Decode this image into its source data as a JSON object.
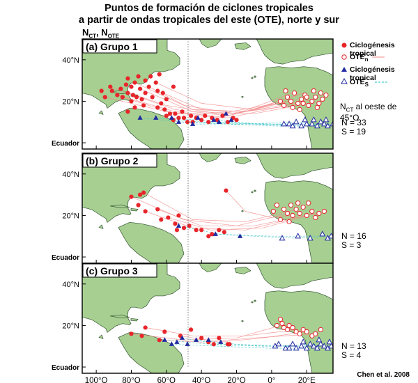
{
  "title_line1": "Puntos de formación de ciclones tropicales",
  "title_line2": "a partir de ondas tropicales del este (OTE), norte y sur",
  "n_label_main": "N",
  "n_label_sub1": "CT",
  "n_label_sep": ", N",
  "n_label_sub2": "OTE",
  "credit": "Chen et al. 2008",
  "lat_labels": [
    "40°N",
    "20°N",
    "Ecuador"
  ],
  "lon_labels": [
    "100°O",
    "80°O",
    "60°O",
    "40°O",
    "20°O",
    "0°",
    "20°E"
  ],
  "colors": {
    "ocean": "#ffffff",
    "land": "#a6cf91",
    "north": "#e8252a",
    "south": "#1f2aa0",
    "north_track": "#f28b8b",
    "south_track": "#45c6c9"
  },
  "legend": {
    "north_genesis": "Ciclogénesis tropical",
    "north_wave_main": "OTE",
    "north_wave_sub": "n",
    "south_genesis": "Ciclogénesis tropical",
    "south_wave_main": "OTE",
    "south_wave_sub": "S",
    "note_main": "N",
    "note_sub": "CT",
    "note_rest": " al oeste de 45°O"
  },
  "panels": [
    {
      "id": "g1",
      "label": "(a) Grupo 1",
      "n": "N = 33",
      "s": "S = 19",
      "north_genesis": [
        [
          -97,
          25
        ],
        [
          -95,
          22
        ],
        [
          -92,
          27
        ],
        [
          -91,
          25
        ],
        [
          -88,
          23
        ],
        [
          -86,
          26
        ],
        [
          -85,
          22
        ],
        [
          -83,
          28
        ],
        [
          -82,
          24
        ],
        [
          -82,
          31
        ],
        [
          -80,
          20
        ],
        [
          -80,
          27
        ],
        [
          -79,
          23
        ],
        [
          -78,
          29
        ],
        [
          -77,
          22
        ],
        [
          -76,
          32
        ],
        [
          -75,
          26
        ],
        [
          -74,
          21
        ],
        [
          -72,
          24
        ],
        [
          -72,
          30
        ],
        [
          -70,
          27
        ],
        [
          -69,
          32
        ],
        [
          -68,
          22
        ],
        [
          -66,
          29
        ],
        [
          -65,
          25
        ],
        [
          -64,
          33
        ],
        [
          -63,
          19
        ],
        [
          -62,
          24
        ],
        [
          -60,
          21
        ],
        [
          -56,
          27
        ],
        [
          -82,
          15
        ],
        [
          -78,
          17
        ],
        [
          -73,
          18
        ],
        [
          -65,
          17
        ],
        [
          -61,
          16
        ],
        [
          -60,
          13
        ],
        [
          -58,
          14
        ],
        [
          -56,
          11
        ],
        [
          -55,
          14
        ],
        [
          -53,
          12
        ],
        [
          -51,
          15
        ],
        [
          -50,
          12
        ],
        [
          -48,
          10
        ],
        [
          -46,
          13
        ],
        [
          -45,
          10
        ],
        [
          -43,
          12
        ],
        [
          -40,
          11
        ],
        [
          -38,
          13
        ],
        [
          -36,
          10
        ],
        [
          -34,
          12
        ],
        [
          -31,
          11
        ],
        [
          -28,
          13
        ],
        [
          -25,
          10
        ],
        [
          -22,
          12
        ],
        [
          -20,
          11
        ]
      ],
      "south_genesis": [
        [
          -75,
          12
        ],
        [
          -66,
          12
        ],
        [
          -57,
          12
        ],
        [
          -53,
          10
        ],
        [
          -45,
          9
        ],
        [
          -42,
          12
        ],
        [
          -33,
          11
        ],
        [
          -30,
          10
        ],
        [
          -26,
          14
        ],
        [
          -23,
          11
        ]
      ],
      "north_waves": [
        [
          5,
          20
        ],
        [
          7,
          18
        ],
        [
          9,
          22
        ],
        [
          11,
          20
        ],
        [
          13,
          24
        ],
        [
          15,
          19
        ],
        [
          17,
          21
        ],
        [
          19,
          23
        ],
        [
          21,
          18
        ],
        [
          23,
          20
        ],
        [
          25,
          22
        ],
        [
          27,
          19
        ],
        [
          29,
          21
        ],
        [
          31,
          23
        ],
        [
          8,
          25
        ],
        [
          12,
          17
        ],
        [
          16,
          16
        ],
        [
          20,
          22
        ],
        [
          24,
          25
        ],
        [
          26,
          17
        ],
        [
          28,
          24
        ],
        [
          18,
          19
        ]
      ],
      "south_waves": [
        [
          7,
          9
        ],
        [
          10,
          9
        ],
        [
          14,
          10
        ],
        [
          17,
          8
        ],
        [
          20,
          9
        ],
        [
          23,
          9
        ],
        [
          26,
          8
        ],
        [
          28,
          10
        ],
        [
          30,
          9
        ],
        [
          32,
          8
        ],
        [
          35,
          9
        ],
        [
          12,
          8
        ],
        [
          19,
          11
        ],
        [
          24,
          11
        ],
        [
          31,
          11
        ]
      ],
      "north_tracks": [
        [
          [
            -92,
            27
          ],
          [
            -60,
            18
          ],
          [
            -30,
            14
          ],
          [
            10,
            20
          ]
        ],
        [
          [
            -82,
            24
          ],
          [
            -55,
            16
          ],
          [
            -25,
            13
          ],
          [
            20,
            22
          ]
        ],
        [
          [
            -70,
            27
          ],
          [
            -45,
            16
          ],
          [
            -15,
            15
          ],
          [
            25,
            21
          ]
        ],
        [
          [
            -62,
            24
          ],
          [
            -40,
            16
          ],
          [
            -15,
            15
          ],
          [
            15,
            23
          ]
        ],
        [
          [
            -78,
            29
          ],
          [
            -50,
            18
          ],
          [
            -20,
            14
          ],
          [
            12,
            24
          ]
        ],
        [
          [
            -85,
            22
          ],
          [
            -55,
            14
          ],
          [
            -25,
            14
          ],
          [
            22,
            19
          ]
        ],
        [
          [
            -95,
            22
          ],
          [
            -60,
            15
          ],
          [
            -30,
            12
          ],
          [
            8,
            20
          ]
        ],
        [
          [
            -75,
            26
          ],
          [
            -45,
            15
          ],
          [
            -10,
            14
          ],
          [
            28,
            20
          ]
        ],
        [
          [
            -66,
            29
          ],
          [
            -40,
            19
          ],
          [
            -10,
            16
          ],
          [
            18,
            24
          ]
        ],
        [
          [
            -88,
            23
          ],
          [
            -55,
            15
          ],
          [
            -25,
            12
          ],
          [
            14,
            19
          ]
        ]
      ],
      "south_tracks": [
        [
          [
            -66,
            12
          ],
          [
            -40,
            10
          ],
          [
            -10,
            9
          ],
          [
            30,
            9
          ]
        ],
        [
          [
            -57,
            12
          ],
          [
            -30,
            10
          ],
          [
            0,
            9
          ],
          [
            25,
            8
          ]
        ],
        [
          [
            -45,
            9
          ],
          [
            -20,
            9
          ],
          [
            10,
            9
          ],
          [
            33,
            9
          ]
        ],
        [
          [
            -33,
            11
          ],
          [
            -10,
            9
          ],
          [
            15,
            8
          ],
          [
            35,
            9
          ]
        ],
        [
          [
            -75,
            12
          ],
          [
            -50,
            10
          ],
          [
            -20,
            9
          ],
          [
            20,
            10
          ]
        ],
        [
          [
            -53,
            10
          ],
          [
            -25,
            9
          ],
          [
            5,
            8
          ],
          [
            28,
            9
          ]
        ]
      ]
    },
    {
      "id": "g2",
      "label": "(b) Grupo 2",
      "n": "N = 16",
      "s": "S = 3",
      "north_genesis": [
        [
          -80,
          29
        ],
        [
          -76,
          25
        ],
        [
          -75,
          30
        ],
        [
          -73,
          31
        ],
        [
          -72,
          22
        ],
        [
          -65,
          23
        ],
        [
          -63,
          18
        ],
        [
          -59,
          19
        ],
        [
          -55,
          16
        ],
        [
          -54,
          13
        ],
        [
          -53,
          20
        ],
        [
          -50,
          14
        ],
        [
          -47,
          15
        ],
        [
          -43,
          13
        ],
        [
          -40,
          13
        ],
        [
          -36,
          10
        ],
        [
          -34,
          11
        ],
        [
          -30,
          13
        ],
        [
          -27,
          12
        ],
        [
          -26,
          32
        ]
      ],
      "south_genesis": [
        [
          -53,
          15
        ],
        [
          -32,
          11
        ],
        [
          -18,
          10
        ]
      ],
      "north_waves": [
        [
          1,
          22
        ],
        [
          3,
          25
        ],
        [
          5,
          18
        ],
        [
          7,
          23
        ],
        [
          9,
          21
        ],
        [
          11,
          25
        ],
        [
          12,
          20
        ],
        [
          14,
          23
        ],
        [
          16,
          21
        ],
        [
          18,
          24
        ],
        [
          20,
          20
        ],
        [
          23,
          22
        ],
        [
          27,
          21
        ],
        [
          30,
          22
        ],
        [
          10,
          17
        ],
        [
          15,
          26
        ],
        [
          21,
          26
        ],
        [
          25,
          19
        ]
      ],
      "south_waves": [
        [
          6,
          9
        ],
        [
          15,
          10
        ],
        [
          22,
          9
        ],
        [
          29,
          11
        ],
        [
          32,
          9
        ],
        [
          34,
          10
        ]
      ],
      "north_tracks": [
        [
          [
            -80,
            29
          ],
          [
            -50,
            18
          ],
          [
            -20,
            15
          ],
          [
            10,
            21
          ]
        ],
        [
          [
            -73,
            31
          ],
          [
            -45,
            18
          ],
          [
            -15,
            17
          ],
          [
            15,
            23
          ]
        ],
        [
          [
            -65,
            23
          ],
          [
            -40,
            15
          ],
          [
            -10,
            15
          ],
          [
            25,
            21
          ]
        ],
        [
          [
            -72,
            22
          ],
          [
            -45,
            14
          ],
          [
            -15,
            13
          ],
          [
            20,
            20
          ]
        ],
        [
          [
            -59,
            19
          ],
          [
            -35,
            13
          ],
          [
            -5,
            14
          ],
          [
            30,
            22
          ]
        ],
        [
          [
            -26,
            32
          ],
          [
            -15,
            22
          ],
          [
            0,
            19
          ],
          [
            12,
            20
          ]
        ]
      ],
      "south_tracks": [
        [
          [
            -53,
            15
          ],
          [
            -30,
            11
          ],
          [
            0,
            10
          ],
          [
            30,
            10
          ]
        ],
        [
          [
            -32,
            11
          ],
          [
            -10,
            10
          ],
          [
            15,
            9
          ],
          [
            34,
            10
          ]
        ]
      ]
    },
    {
      "id": "g3",
      "label": "(c) Grupo 3",
      "n": "N = 13",
      "s": "S = 4",
      "north_genesis": [
        [
          -80,
          16
        ],
        [
          -74,
          15
        ],
        [
          -72,
          19
        ],
        [
          -64,
          13
        ],
        [
          -61,
          17
        ],
        [
          -52,
          15
        ],
        [
          -46,
          18
        ],
        [
          -40,
          14
        ],
        [
          -36,
          12
        ],
        [
          -33,
          11
        ],
        [
          -30,
          14
        ],
        [
          -25,
          11
        ],
        [
          -24,
          11
        ]
      ],
      "south_genesis": [
        [
          -61,
          13
        ],
        [
          -57,
          11
        ],
        [
          -54,
          12
        ],
        [
          -51,
          14
        ],
        [
          -48,
          11
        ],
        [
          -43,
          13
        ],
        [
          -36,
          13
        ],
        [
          -29,
          12
        ]
      ],
      "north_waves": [
        [
          3,
          20
        ],
        [
          5,
          23
        ],
        [
          6,
          21
        ],
        [
          7,
          19
        ],
        [
          9,
          18
        ],
        [
          10,
          20
        ],
        [
          12,
          19
        ],
        [
          14,
          17
        ],
        [
          16,
          16
        ],
        [
          18,
          18
        ],
        [
          20,
          17
        ],
        [
          23,
          15
        ],
        [
          25,
          16
        ],
        [
          28,
          18
        ]
      ],
      "south_waves": [
        [
          2,
          10
        ],
        [
          4,
          11
        ],
        [
          8,
          9
        ],
        [
          10,
          9
        ],
        [
          12,
          11
        ],
        [
          14,
          9
        ],
        [
          17,
          10
        ],
        [
          20,
          9
        ],
        [
          22,
          11
        ],
        [
          24,
          10
        ],
        [
          26,
          9
        ],
        [
          28,
          11
        ],
        [
          30,
          10
        ],
        [
          32,
          9
        ],
        [
          34,
          10
        ],
        [
          18,
          12
        ],
        [
          27,
          13
        ],
        [
          33,
          12
        ]
      ],
      "north_tracks": [
        [
          [
            -80,
            16
          ],
          [
            -50,
            13
          ],
          [
            -20,
            14
          ],
          [
            5,
            20
          ]
        ],
        [
          [
            -72,
            19
          ],
          [
            -45,
            15
          ],
          [
            -15,
            15
          ],
          [
            15,
            18
          ]
        ],
        [
          [
            -64,
            13
          ],
          [
            -40,
            12
          ],
          [
            -10,
            14
          ],
          [
            25,
            16
          ]
        ],
        [
          [
            -52,
            15
          ],
          [
            -30,
            12
          ],
          [
            -5,
            14
          ],
          [
            20,
            17
          ]
        ]
      ],
      "south_tracks": [
        [
          [
            -61,
            13
          ],
          [
            -35,
            11
          ],
          [
            -5,
            10
          ],
          [
            30,
            10
          ]
        ],
        [
          [
            -51,
            14
          ],
          [
            -30,
            11
          ],
          [
            0,
            10
          ],
          [
            25,
            11
          ]
        ],
        [
          [
            -43,
            13
          ],
          [
            -20,
            11
          ],
          [
            5,
            10
          ],
          [
            33,
            10
          ]
        ],
        [
          [
            -57,
            11
          ],
          [
            -30,
            10
          ],
          [
            0,
            9
          ],
          [
            20,
            9
          ]
        ]
      ]
    }
  ]
}
